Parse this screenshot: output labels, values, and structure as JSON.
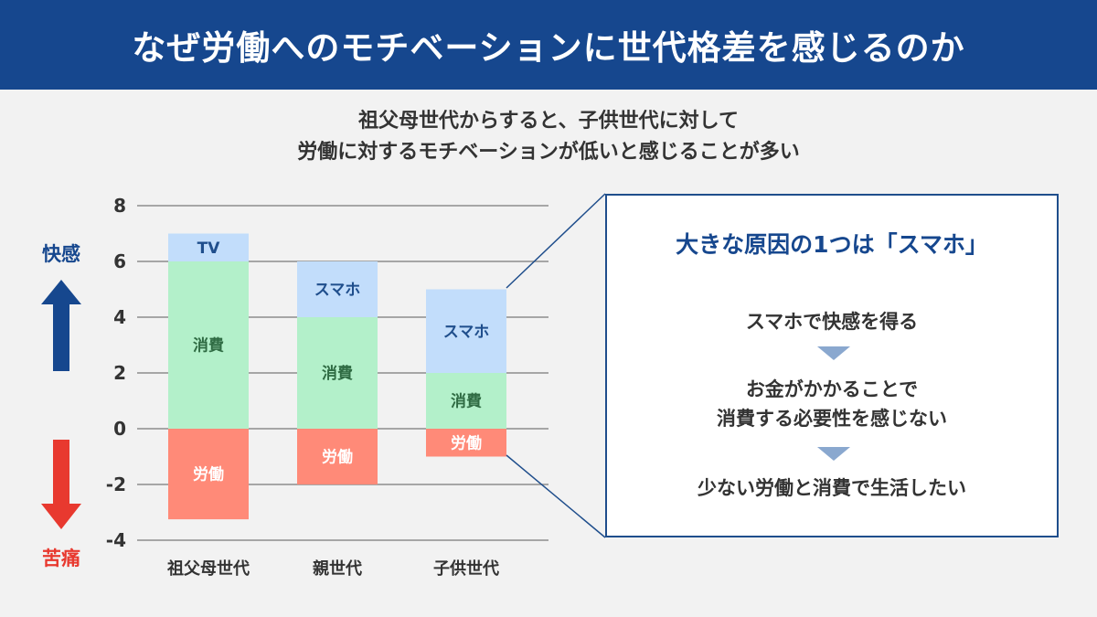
{
  "header": {
    "title": "なぜ労働へのモチベーションに世代格差を感じるのか"
  },
  "subtitle": {
    "line1": "祖父母世代からすると、子供世代に対して",
    "line2": "労働に対するモチベーションが低いと感じることが多い"
  },
  "chart_data": {
    "type": "bar",
    "stacked": true,
    "title": "",
    "xlabel": "",
    "ylabel": "",
    "ylim": [
      -4,
      8
    ],
    "yticks": [
      8,
      6,
      4,
      2,
      0,
      -2,
      -4
    ],
    "grid": true,
    "categories": [
      "祖父母世代",
      "親世代",
      "子供世代"
    ],
    "bars": [
      {
        "category": "祖父母世代",
        "segments": [
          {
            "label": "労働",
            "from": 0,
            "to": -3.25,
            "color": "#ff8a78"
          },
          {
            "label": "消費",
            "from": 0,
            "to": 6,
            "color": "#b3f0ca"
          },
          {
            "label": "TV",
            "from": 6,
            "to": 7,
            "color": "#c2ddfb"
          }
        ]
      },
      {
        "category": "親世代",
        "segments": [
          {
            "label": "労働",
            "from": 0,
            "to": -2,
            "color": "#ff8a78"
          },
          {
            "label": "消費",
            "from": 0,
            "to": 4,
            "color": "#b3f0ca"
          },
          {
            "label": "スマホ",
            "from": 4,
            "to": 6,
            "color": "#c2ddfb"
          }
        ]
      },
      {
        "category": "子供世代",
        "segments": [
          {
            "label": "労働",
            "from": 0,
            "to": -1,
            "color": "#ff8a78"
          },
          {
            "label": "消費",
            "from": 0,
            "to": 2,
            "color": "#b3f0ca"
          },
          {
            "label": "スマホ",
            "from": 2,
            "to": 5,
            "color": "#c2ddfb"
          }
        ]
      }
    ],
    "labelColors": {
      "労働": "#ffffff",
      "消費": "#2f6b43",
      "TV": "#1f4e8c",
      "スマホ": "#1f4e8c"
    },
    "side_labels": {
      "up": {
        "text": "快感",
        "color": "#16478e"
      },
      "down": {
        "text": "苦痛",
        "color": "#e8392f"
      }
    }
  },
  "callout": {
    "title": "大きな原因の1つは「スマホ」",
    "steps": [
      [
        "スマホで快感を得る"
      ],
      [
        "お金がかかることで",
        "消費する必要性を感じない"
      ],
      [
        "少ない労働と消費で生活したい"
      ]
    ],
    "arrow_color": "#8aa8cf",
    "border_color": "#1f4e8c"
  }
}
